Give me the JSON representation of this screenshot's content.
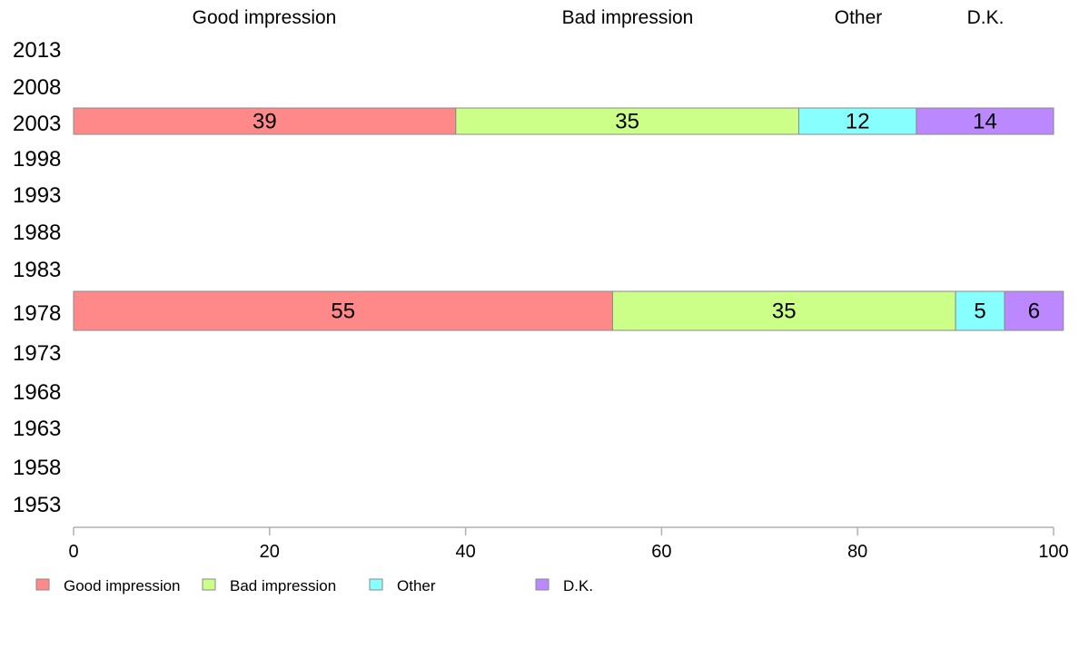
{
  "chart_data": {
    "type": "bar",
    "orientation": "horizontal",
    "stacked": true,
    "column_headers": [
      "Good impression",
      "Bad impression",
      "Other",
      "D.K."
    ],
    "categories": [
      "2013",
      "2008",
      "2003",
      "1998",
      "1993",
      "1988",
      "1983",
      "1978",
      "1973",
      "1968",
      "1963",
      "1958",
      "1953"
    ],
    "series": [
      {
        "name": "Good impression",
        "color": "#ff8888",
        "values": [
          null,
          null,
          39,
          null,
          null,
          null,
          null,
          55,
          null,
          null,
          null,
          null,
          null
        ]
      },
      {
        "name": "Bad impression",
        "color": "#ccff88",
        "values": [
          null,
          null,
          35,
          null,
          null,
          null,
          null,
          35,
          null,
          null,
          null,
          null,
          null
        ]
      },
      {
        "name": "Other",
        "color": "#88ffff",
        "values": [
          null,
          null,
          12,
          null,
          null,
          null,
          null,
          5,
          null,
          null,
          null,
          null,
          null
        ]
      },
      {
        "name": "D.K.",
        "color": "#bb88ff",
        "values": [
          null,
          null,
          14,
          null,
          null,
          null,
          null,
          6,
          null,
          null,
          null,
          null,
          null
        ]
      }
    ],
    "xlim": [
      0,
      100
    ],
    "xticks": [
      "0",
      "20",
      "40",
      "60",
      "80",
      "100"
    ],
    "grid": false,
    "legend_position": "bottom-left"
  }
}
